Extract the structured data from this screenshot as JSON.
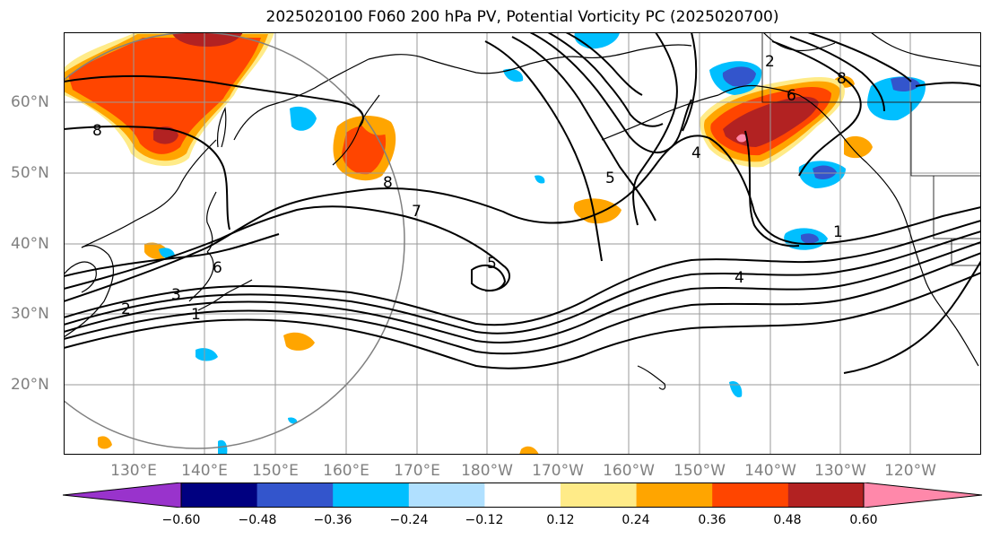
{
  "title": "2025020100 F060 200 hPa PV, Potential Vorticity PC (2025020700)",
  "lat_labels": [
    "60°N",
    "50°N",
    "40°N",
    "30°N",
    "20°N"
  ],
  "lon_labels": [
    "130°E",
    "140°E",
    "150°E",
    "160°E",
    "170°E",
    "180°W",
    "170°W",
    "160°W",
    "150°W",
    "140°W",
    "130°W",
    "120°W"
  ],
  "contour_labels": [
    "8",
    "8",
    "7",
    "6",
    "5",
    "5",
    "4",
    "4",
    "3",
    "2",
    "1",
    "2",
    "6",
    "8",
    "1"
  ],
  "colorbar": {
    "tick_labels": [
      "−0.60",
      "−0.48",
      "−0.36",
      "−0.24",
      "−0.12",
      "0.12",
      "0.24",
      "0.36",
      "0.48",
      "0.60"
    ],
    "colors": [
      "#9933cc",
      "#000080",
      "#3355cc",
      "#00bfff",
      "#b0e0ff",
      "#ffffff",
      "#ffeb88",
      "#ffa500",
      "#ff4500",
      "#b22222",
      "#ff88aa"
    ]
  }
}
